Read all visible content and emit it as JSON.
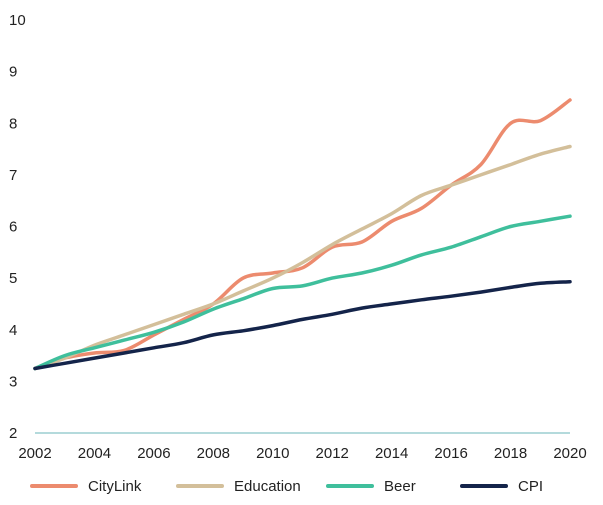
{
  "chart_data": {
    "type": "line",
    "xlim": [
      2002,
      2020
    ],
    "ylim": [
      2,
      10
    ],
    "x_ticks": [
      2002,
      2004,
      2006,
      2008,
      2010,
      2012,
      2014,
      2016,
      2018,
      2020
    ],
    "y_ticks": [
      2,
      3,
      4,
      5,
      6,
      7,
      8,
      9,
      10
    ],
    "grid": false,
    "legend_position": "bottom",
    "axis_color": "#69b5b8",
    "x": [
      2002,
      2003,
      2004,
      2005,
      2006,
      2007,
      2008,
      2009,
      2010,
      2011,
      2012,
      2013,
      2014,
      2015,
      2016,
      2017,
      2018,
      2019,
      2020
    ],
    "series": [
      {
        "name": "CityLink",
        "color": "#ec8b6e",
        "values": [
          3.25,
          3.45,
          3.55,
          3.6,
          3.9,
          4.2,
          4.5,
          5.0,
          5.1,
          5.2,
          5.6,
          5.7,
          6.1,
          6.35,
          6.8,
          7.2,
          8.0,
          8.05,
          8.45
        ]
      },
      {
        "name": "Education",
        "color": "#d3bf9a",
        "values": [
          3.25,
          3.45,
          3.7,
          3.9,
          4.1,
          4.3,
          4.5,
          4.75,
          5.0,
          5.3,
          5.65,
          5.95,
          6.25,
          6.6,
          6.8,
          7.0,
          7.2,
          7.4,
          7.55
        ]
      },
      {
        "name": "Beer",
        "color": "#3fbf9c",
        "values": [
          3.25,
          3.5,
          3.65,
          3.8,
          3.95,
          4.15,
          4.4,
          4.6,
          4.8,
          4.85,
          5.0,
          5.1,
          5.25,
          5.45,
          5.6,
          5.8,
          6.0,
          6.1,
          6.2
        ]
      },
      {
        "name": "CPI",
        "color": "#14244a",
        "values": [
          3.25,
          3.35,
          3.45,
          3.55,
          3.65,
          3.75,
          3.9,
          3.98,
          4.08,
          4.2,
          4.3,
          4.42,
          4.5,
          4.58,
          4.65,
          4.73,
          4.82,
          4.9,
          4.93
        ]
      }
    ]
  }
}
